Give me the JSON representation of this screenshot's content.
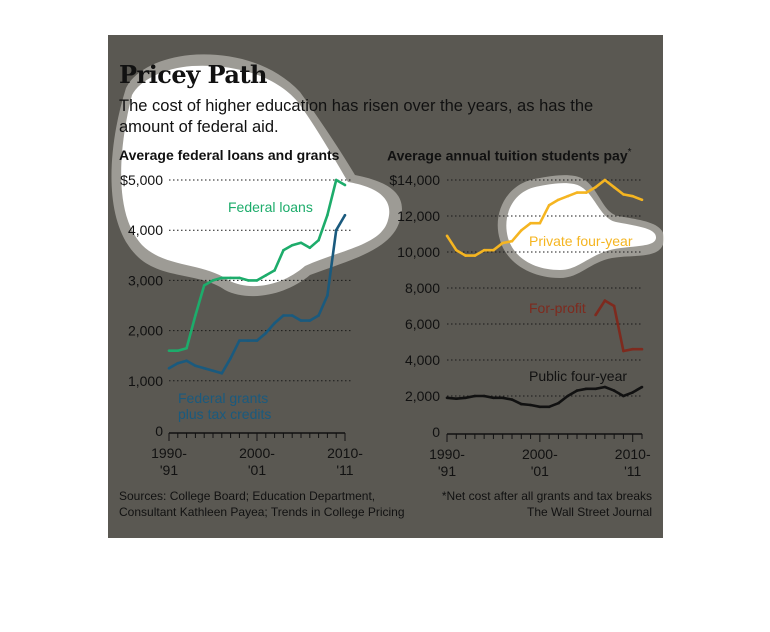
{
  "header": {
    "title": "Pricey Path",
    "subtitle": "The cost of higher education has risen over the years, as has the amount of federal aid."
  },
  "footer": {
    "source_line1": "Sources: College Board; Education Department,",
    "source_line2": "Consultant Kathleen Payea; Trends in College Pricing",
    "note": "*Net cost after all grants and tax breaks",
    "credit": "The Wall Street Journal"
  },
  "colors": {
    "background": "#5a5852",
    "highlight": "#ffffff",
    "federal_loans": "#1dac6b",
    "federal_grants": "#1a5a7e",
    "private_four_year": "#f5b521",
    "for_profit": "#7e2a1e",
    "public_four_year": "#111111"
  },
  "chart_data": [
    {
      "type": "line",
      "title": "Average federal loans and grants",
      "x": [
        1990,
        1991,
        1992,
        1993,
        1994,
        1995,
        1996,
        1997,
        1998,
        1999,
        2000,
        2001,
        2002,
        2003,
        2004,
        2005,
        2006,
        2007,
        2008,
        2009,
        2010
      ],
      "x_tick_labels": [
        {
          "x": 1990,
          "line1": "1990-",
          "line2": "'91"
        },
        {
          "x": 2000,
          "line1": "2000-",
          "line2": "'01"
        },
        {
          "x": 2010,
          "line1": "2010-",
          "line2": "'11"
        }
      ],
      "ylim": [
        0,
        5000
      ],
      "y_ticks": [
        0,
        1000,
        2000,
        3000,
        4000,
        5000
      ],
      "y_tick_labels": [
        "0",
        "1,000",
        "2,000",
        "3,000",
        "4,000",
        "$5,000"
      ],
      "grid": "dotted horizontal",
      "series": [
        {
          "name": "Federal loans",
          "color_key": "federal_loans",
          "x": [
            1990,
            1991,
            1992,
            1993,
            1994,
            1995,
            1996,
            1997,
            1998,
            1999,
            2000,
            2001,
            2002,
            2003,
            2004,
            2005,
            2006,
            2007,
            2008,
            2009,
            2010
          ],
          "values": [
            1600,
            1600,
            1650,
            2300,
            2900,
            3000,
            3050,
            3050,
            3050,
            3000,
            3000,
            3100,
            3200,
            3600,
            3700,
            3750,
            3650,
            3800,
            4300,
            5000,
            4900
          ]
        },
        {
          "name": "Federal grants plus tax credits",
          "name_line1": "Federal grants",
          "name_line2": "plus tax credits",
          "color_key": "federal_grants",
          "x": [
            1990,
            1991,
            1992,
            1993,
            1994,
            1995,
            1996,
            1997,
            1998,
            1999,
            2000,
            2001,
            2002,
            2003,
            2004,
            2005,
            2006,
            2007,
            2008,
            2009,
            2010
          ],
          "values": [
            1250,
            1350,
            1400,
            1300,
            1250,
            1200,
            1150,
            1450,
            1800,
            1800,
            1800,
            1950,
            2150,
            2300,
            2300,
            2200,
            2200,
            2300,
            2700,
            4000,
            4300
          ]
        }
      ]
    },
    {
      "type": "line",
      "title": "Average annual tuition students pay",
      "title_marker": "*",
      "x": [
        1990,
        1991,
        1992,
        1993,
        1994,
        1995,
        1996,
        1997,
        1998,
        1999,
        2000,
        2001,
        2002,
        2003,
        2004,
        2005,
        2006,
        2007,
        2008,
        2009,
        2010,
        2011
      ],
      "x_tick_labels": [
        {
          "x": 1990,
          "line1": "1990-",
          "line2": "'91"
        },
        {
          "x": 2000,
          "line1": "2000-",
          "line2": "'01"
        },
        {
          "x": 2010,
          "line1": "2010-",
          "line2": "'11"
        }
      ],
      "ylim": [
        0,
        14000
      ],
      "y_ticks": [
        0,
        2000,
        4000,
        6000,
        8000,
        10000,
        12000,
        14000
      ],
      "y_tick_labels": [
        "0",
        "2,000",
        "4,000",
        "6,000",
        "8,000",
        "10,000",
        "12,000",
        "$14,000"
      ],
      "grid": "dotted horizontal",
      "series": [
        {
          "name": "Private four-year",
          "color_key": "private_four_year",
          "x": [
            1990,
            1991,
            1992,
            1993,
            1994,
            1995,
            1996,
            1997,
            1998,
            1999,
            2000,
            2001,
            2002,
            2003,
            2004,
            2005,
            2006,
            2007,
            2008,
            2009,
            2010,
            2011
          ],
          "values": [
            10900,
            10100,
            9800,
            9800,
            10100,
            10100,
            10500,
            10600,
            11200,
            11600,
            11600,
            12600,
            12900,
            13100,
            13300,
            13300,
            13600,
            14000,
            13600,
            13200,
            13100,
            12900
          ]
        },
        {
          "name": "For-profit",
          "color_key": "for_profit",
          "x": [
            2006,
            2007,
            2008,
            2009,
            2010,
            2011
          ],
          "values": [
            6500,
            7300,
            7000,
            4500,
            4600,
            4600
          ]
        },
        {
          "name": "Public four-year",
          "color_key": "public_four_year",
          "x": [
            1990,
            1991,
            1992,
            1993,
            1994,
            1995,
            1996,
            1997,
            1998,
            1999,
            2000,
            2001,
            2002,
            2003,
            2004,
            2005,
            2006,
            2007,
            2008,
            2009,
            2010,
            2011
          ],
          "values": [
            1900,
            1850,
            1900,
            2000,
            2000,
            1900,
            1900,
            1800,
            1550,
            1500,
            1400,
            1400,
            1600,
            2000,
            2300,
            2400,
            2400,
            2500,
            2300,
            2000,
            2200,
            2500
          ]
        }
      ]
    }
  ]
}
